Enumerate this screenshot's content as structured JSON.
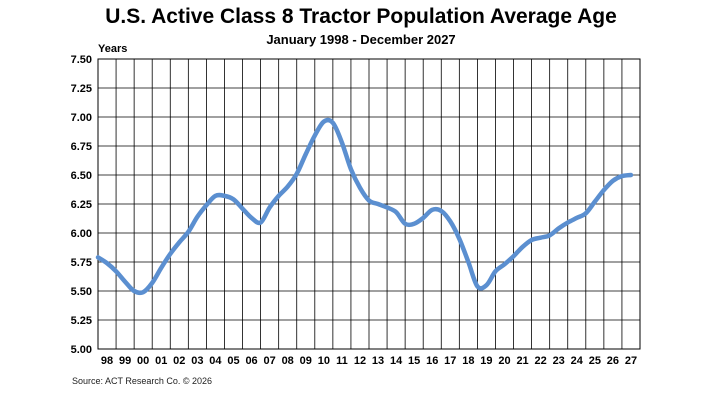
{
  "chart_data": {
    "type": "line",
    "title": "U.S. Active Class 8 Tractor Population Average Age",
    "subtitle": "January 1998 - December 2027",
    "ylabel": "Years",
    "xlabel": "",
    "ylim": [
      5.0,
      7.5
    ],
    "yticks": [
      "7.50",
      "7.25",
      "7.00",
      "6.75",
      "6.50",
      "6.25",
      "6.00",
      "5.75",
      "5.50",
      "5.25",
      "5.00"
    ],
    "xticks": [
      "98",
      "99",
      "00",
      "01",
      "02",
      "03",
      "04",
      "05",
      "06",
      "07",
      "08",
      "09",
      "10",
      "11",
      "12",
      "13",
      "14",
      "15",
      "16",
      "17",
      "18",
      "19",
      "20",
      "21",
      "22",
      "23",
      "24",
      "25",
      "26",
      "27"
    ],
    "grid": true,
    "line_color": "#5b8fd0",
    "series": [
      {
        "x": [
          1998.0,
          1998.5,
          1999.0,
          1999.5,
          2000.0,
          2000.5,
          2001.0,
          2001.5,
          2002.0,
          2002.5,
          2003.0,
          2003.5,
          2004.0,
          2004.5,
          2005.0,
          2005.5,
          2006.0,
          2006.5,
          2007.0,
          2007.5,
          2008.0,
          2008.5,
          2009.0,
          2009.5,
          2010.0,
          2010.5,
          2011.0,
          2011.5,
          2012.0,
          2012.5,
          2013.0,
          2013.5,
          2014.0,
          2014.5,
          2015.0,
          2015.5,
          2016.0,
          2016.5,
          2017.0,
          2017.5,
          2018.0,
          2018.5,
          2019.0,
          2019.5,
          2020.0,
          2020.5,
          2021.0,
          2021.5,
          2022.0,
          2022.5,
          2023.0,
          2023.5,
          2024.0,
          2024.5,
          2025.0,
          2025.5,
          2026.0,
          2026.5,
          2027.0,
          2027.5
        ],
        "values": [
          5.79,
          5.74,
          5.67,
          5.58,
          5.5,
          5.49,
          5.57,
          5.7,
          5.82,
          5.92,
          6.01,
          6.14,
          6.24,
          6.32,
          6.32,
          6.29,
          6.21,
          6.13,
          6.09,
          6.22,
          6.32,
          6.4,
          6.51,
          6.68,
          6.84,
          6.96,
          6.95,
          6.78,
          6.55,
          6.39,
          6.28,
          6.25,
          6.22,
          6.18,
          6.08,
          6.08,
          6.13,
          6.2,
          6.19,
          6.1,
          5.95,
          5.75,
          5.54,
          5.55,
          5.67,
          5.73,
          5.8,
          5.88,
          5.94,
          5.96,
          5.98,
          6.04,
          6.09,
          6.13,
          6.17,
          6.27,
          6.37,
          6.45,
          6.49,
          6.5
        ]
      }
    ]
  },
  "source": "Source: ACT Research Co. © 2026"
}
